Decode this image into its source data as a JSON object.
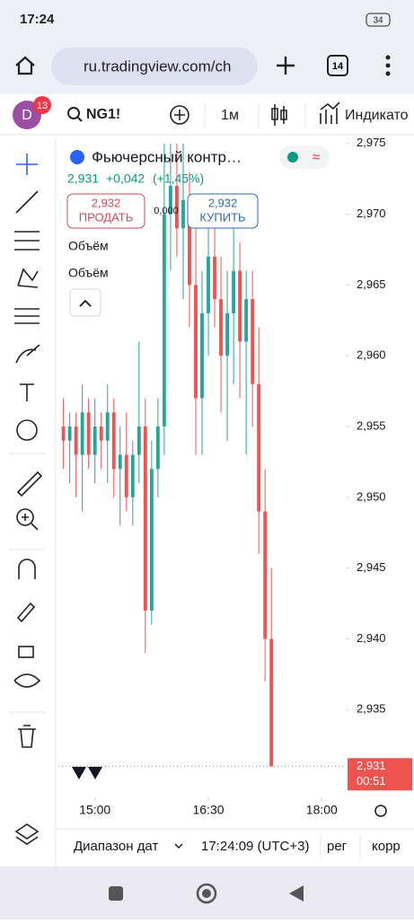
{
  "status_bar": {
    "time": "17:24",
    "battery": "34"
  },
  "browser": {
    "url": "ru.tradingview.com/ch",
    "tabs": "14"
  },
  "toolbar": {
    "avatar": "D",
    "badge": "13",
    "symbol": "NG1!",
    "interval": "1м",
    "indicators": "Индикато"
  },
  "legend": {
    "title": "Фьючерсный контр…",
    "price": "2,931",
    "change": "+0,042",
    "change_pct": "(+1,45%)",
    "sell_price": "2,932",
    "sell": "ПРОДАТЬ",
    "spread": "0,000",
    "buy_price": "2,932",
    "buy": "КУПИТЬ",
    "studies": [
      "Объём",
      "Объём"
    ]
  },
  "chart_data": {
    "type": "candlestick",
    "x": [
      "14:35",
      "14:40",
      "14:45",
      "14:50",
      "14:55",
      "15:00",
      "15:05",
      "15:10",
      "15:15",
      "15:20",
      "15:25",
      "15:30",
      "15:35",
      "15:40",
      "15:45",
      "15:50",
      "15:55",
      "16:00",
      "16:05",
      "16:10",
      "16:15",
      "16:20",
      "16:25",
      "16:30",
      "16:35",
      "16:40",
      "16:45",
      "16:50",
      "16:55",
      "17:00",
      "17:05",
      "17:10",
      "17:15",
      "17:20"
    ],
    "open": [
      2.955,
      2.954,
      2.955,
      2.953,
      2.956,
      2.953,
      2.955,
      2.954,
      2.956,
      2.952,
      2.953,
      2.95,
      2.953,
      2.955,
      2.942,
      2.952,
      2.955,
      2.97,
      2.972,
      2.969,
      2.971,
      2.965,
      2.957,
      2.963,
      2.967,
      2.964,
      2.96,
      2.963,
      2.966,
      2.961,
      2.964,
      2.958,
      2.949,
      2.94
    ],
    "high": [
      2.957,
      2.956,
      2.956,
      2.958,
      2.957,
      2.957,
      2.956,
      2.958,
      2.957,
      2.955,
      2.956,
      2.954,
      2.961,
      2.957,
      2.954,
      2.957,
      2.975,
      2.975,
      2.975,
      2.975,
      2.973,
      2.97,
      2.966,
      2.97,
      2.971,
      2.967,
      2.966,
      2.969,
      2.968,
      2.966,
      2.966,
      2.962,
      2.952,
      2.945
    ],
    "low": [
      2.952,
      2.951,
      2.95,
      2.949,
      2.952,
      2.951,
      2.952,
      2.951,
      2.95,
      2.948,
      2.949,
      2.948,
      2.951,
      2.939,
      2.941,
      2.95,
      2.953,
      2.966,
      2.967,
      2.964,
      2.962,
      2.953,
      2.953,
      2.96,
      2.962,
      2.956,
      2.954,
      2.958,
      2.957,
      2.953,
      2.955,
      2.946,
      2.937,
      2.931
    ],
    "close": [
      2.954,
      2.955,
      2.953,
      2.956,
      2.953,
      2.955,
      2.954,
      2.956,
      2.952,
      2.953,
      2.95,
      2.953,
      2.955,
      2.942,
      2.952,
      2.955,
      2.97,
      2.972,
      2.969,
      2.971,
      2.965,
      2.957,
      2.963,
      2.967,
      2.964,
      2.96,
      2.963,
      2.966,
      2.961,
      2.964,
      2.958,
      2.949,
      2.94,
      2.931
    ],
    "up_color": "#26a69a",
    "down_color": "#ef5350",
    "ylim": [
      2.9288,
      2.9753
    ],
    "yticks": [
      {
        "value": 2.935,
        "label": "2,935"
      },
      {
        "value": 2.94,
        "label": "2,940"
      },
      {
        "value": 2.945,
        "label": "2,945"
      },
      {
        "value": 2.95,
        "label": "2,950"
      },
      {
        "value": 2.955,
        "label": "2,955"
      },
      {
        "value": 2.96,
        "label": "2,960"
      },
      {
        "value": 2.965,
        "label": "2,965"
      },
      {
        "value": 2.97,
        "label": "2,970"
      },
      {
        "value": 2.975,
        "label": "2,975"
      }
    ],
    "xlim": [
      "14:31",
      "18:19"
    ],
    "xticks": [
      "15:00",
      "16:30",
      "18:00"
    ],
    "price_label": "2,931",
    "countdown": "00:51"
  },
  "bottom_bar": {
    "range": "Диапазон дат",
    "clock": "17:24:09 (UTC+3)",
    "session": "рег",
    "adjust": "корр"
  }
}
